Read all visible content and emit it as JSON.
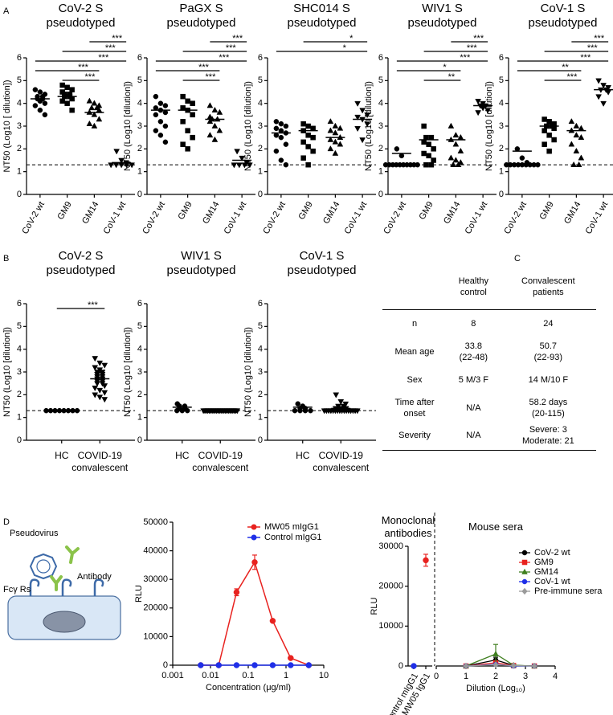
{
  "panel_labels": [
    "A",
    "B",
    "C",
    "D"
  ],
  "chart_data": [
    {
      "type": "dot",
      "title": "CoV-2 S pseudotyped",
      "ylabel": "NT50 (Log10 [ dilution])",
      "categories": [
        "CoV-2 wt",
        "GM9",
        "GM14",
        "CoV-1 wt"
      ],
      "markers": [
        "circle",
        "square",
        "triangle-up",
        "triangle-down"
      ],
      "color": "#000000",
      "values": [
        [
          4.6,
          4.5,
          4.4,
          4.3,
          4.3,
          4.2,
          4.2,
          4.1,
          4.0,
          3.9,
          3.7,
          3.5
        ],
        [
          4.8,
          4.7,
          4.6,
          4.5,
          4.4,
          4.4,
          4.3,
          4.3,
          4.2,
          4.1,
          4.0,
          3.7
        ],
        [
          4.1,
          4.0,
          3.9,
          3.8,
          3.8,
          3.7,
          3.6,
          3.5,
          3.3,
          3.1,
          3.0
        ],
        [
          1.9,
          1.5,
          1.4,
          1.3,
          1.3,
          1.3,
          1.3,
          1.3
        ]
      ],
      "means": [
        4.2,
        4.3,
        3.6,
        1.4
      ],
      "reference_line": 1.3,
      "ylim": [
        0,
        6
      ],
      "yticks": [
        0,
        1,
        2,
        3,
        4,
        5,
        6
      ],
      "significance": [
        {
          "from": 2,
          "to": 3,
          "label": "***"
        },
        {
          "from": 1,
          "to": 3,
          "label": "***"
        },
        {
          "from": 0,
          "to": 3,
          "label": "***"
        },
        {
          "from": 0,
          "to": 2,
          "label": "***"
        },
        {
          "from": 1,
          "to": 2,
          "label": "***"
        }
      ]
    },
    {
      "type": "dot",
      "title": "PaGX S pseudotyped",
      "ylabel": "NT50 (Log10 [dilution])",
      "categories": [
        "CoV-2 wt",
        "GM9",
        "GM14",
        "CoV-1 wt"
      ],
      "markers": [
        "circle",
        "square",
        "triangle-up",
        "triangle-down"
      ],
      "color": "#000000",
      "values": [
        [
          4.3,
          4.0,
          3.9,
          3.8,
          3.7,
          3.6,
          3.5,
          3.2,
          3.0,
          2.8,
          2.6,
          2.3
        ],
        [
          4.3,
          4.1,
          4.0,
          3.8,
          3.7,
          3.5,
          3.2,
          2.8,
          2.5,
          2.2,
          2.0
        ],
        [
          3.9,
          3.7,
          3.6,
          3.4,
          3.3,
          3.3,
          3.2,
          3.0,
          2.8,
          2.6,
          2.4
        ],
        [
          1.9,
          1.6,
          1.4,
          1.3,
          1.3,
          1.3,
          1.3
        ]
      ],
      "means": [
        3.7,
        3.7,
        3.3,
        1.5
      ],
      "reference_line": 1.3,
      "ylim": [
        0,
        6
      ],
      "yticks": [
        0,
        1,
        2,
        3,
        4,
        5,
        6
      ],
      "significance": [
        {
          "from": 2,
          "to": 3,
          "label": "***"
        },
        {
          "from": 1,
          "to": 3,
          "label": "***"
        },
        {
          "from": 0,
          "to": 3,
          "label": "***"
        },
        {
          "from": 0,
          "to": 2,
          "label": "***"
        },
        {
          "from": 1,
          "to": 2,
          "label": "***"
        }
      ]
    },
    {
      "type": "dot",
      "title": "SHC014 S pseudotyped",
      "ylabel": "NT50 (Log10 [dilution])",
      "categories": [
        "CoV-2 wt",
        "GM9",
        "GM14",
        "CoV-1 wt"
      ],
      "markers": [
        "circle",
        "square",
        "triangle-up",
        "triangle-down"
      ],
      "color": "#000000",
      "values": [
        [
          3.2,
          3.1,
          3.0,
          2.9,
          2.8,
          2.7,
          2.6,
          2.5,
          2.2,
          1.9,
          1.5,
          1.3
        ],
        [
          3.1,
          3.0,
          2.9,
          2.8,
          2.6,
          2.5,
          2.3,
          2.1,
          1.9,
          1.6,
          1.3
        ],
        [
          3.2,
          3.0,
          2.9,
          2.8,
          2.7,
          2.5,
          2.4,
          2.3,
          2.2,
          2.0,
          1.8
        ],
        [
          4.0,
          3.7,
          3.5,
          3.4,
          3.3,
          3.1,
          2.9,
          2.4
        ]
      ],
      "means": [
        2.7,
        2.8,
        2.5,
        3.3
      ],
      "reference_line": 1.3,
      "ylim": [
        0,
        6
      ],
      "yticks": [
        0,
        1,
        2,
        3,
        4,
        5,
        6
      ],
      "significance": [
        {
          "from": 1,
          "to": 3,
          "label": "*"
        },
        {
          "from": 0,
          "to": 3,
          "label": "*"
        }
      ]
    },
    {
      "type": "dot",
      "title": "WIV1 S pseudotyped",
      "ylabel": "NT50 (Log10 [dilution])",
      "categories": [
        "CoV-2 wt",
        "GM9",
        "GM14",
        "CoV-1 wt"
      ],
      "markers": [
        "circle",
        "square",
        "triangle-up",
        "triangle-down"
      ],
      "color": "#000000",
      "values": [
        [
          2.0,
          1.7,
          1.3,
          1.3,
          1.3,
          1.3,
          1.3,
          1.3,
          1.3,
          1.3,
          1.3,
          1.3
        ],
        [
          3.0,
          2.5,
          2.5,
          2.3,
          2.2,
          2.0,
          1.8,
          1.7,
          1.5,
          1.3,
          1.3
        ],
        [
          3.0,
          2.6,
          2.5,
          2.4,
          2.2,
          1.9,
          1.6,
          1.5,
          1.4,
          1.3,
          1.3
        ],
        [
          4.1,
          4.0,
          3.9,
          3.9,
          3.8,
          3.7,
          3.6
        ]
      ],
      "means": [
        1.8,
        2.4,
        2.4,
        3.9
      ],
      "reference_line": 1.3,
      "ylim": [
        0,
        6
      ],
      "yticks": [
        0,
        1,
        2,
        3,
        4,
        5,
        6
      ],
      "significance": [
        {
          "from": 2,
          "to": 3,
          "label": "***"
        },
        {
          "from": 1,
          "to": 3,
          "label": "***"
        },
        {
          "from": 0,
          "to": 3,
          "label": "***"
        },
        {
          "from": 0,
          "to": 2,
          "label": "*"
        },
        {
          "from": 1,
          "to": 2,
          "label": "**"
        }
      ]
    },
    {
      "type": "dot",
      "title": "CoV-1 S pseudotyped",
      "ylabel": "NT50 (Log10 [dilution])",
      "categories": [
        "CoV-2 wt",
        "GM9",
        "GM14",
        "CoV-1 wt"
      ],
      "markers": [
        "circle",
        "square",
        "triangle-up",
        "triangle-down"
      ],
      "color": "#000000",
      "values": [
        [
          2.0,
          1.6,
          1.4,
          1.3,
          1.3,
          1.3,
          1.3,
          1.3,
          1.3,
          1.3,
          1.3,
          1.3
        ],
        [
          3.3,
          3.2,
          3.1,
          3.0,
          3.0,
          2.9,
          2.8,
          2.6,
          2.4,
          2.2,
          1.9
        ],
        [
          3.2,
          3.0,
          2.9,
          2.8,
          2.6,
          2.5,
          2.2,
          1.9,
          1.6,
          1.3,
          1.3
        ],
        [
          5.0,
          4.8,
          4.7,
          4.6,
          4.6,
          4.5,
          4.3,
          4.0
        ]
      ],
      "means": [
        1.9,
        3.0,
        2.8,
        4.6
      ],
      "reference_line": 1.3,
      "ylim": [
        0,
        6
      ],
      "yticks": [
        0,
        1,
        2,
        3,
        4,
        5,
        6
      ],
      "significance": [
        {
          "from": 2,
          "to": 3,
          "label": "***"
        },
        {
          "from": 1,
          "to": 3,
          "label": "***"
        },
        {
          "from": 0,
          "to": 3,
          "label": "***"
        },
        {
          "from": 0,
          "to": 2,
          "label": "**"
        },
        {
          "from": 1,
          "to": 2,
          "label": "***"
        }
      ]
    },
    {
      "type": "dot",
      "title": "CoV-2 S pseudotyped",
      "ylabel": "NT50 (Log10 [dilution])",
      "categories": [
        "HC",
        "COVID-19 convalescent"
      ],
      "markers": [
        "circle",
        "triangle-down"
      ],
      "color": "#000000",
      "values": [
        [
          1.3,
          1.3,
          1.3,
          1.3,
          1.3,
          1.3,
          1.3,
          1.3
        ],
        [
          3.6,
          3.4,
          3.3,
          3.2,
          3.1,
          3.0,
          3.0,
          2.9,
          2.9,
          2.8,
          2.8,
          2.7,
          2.7,
          2.6,
          2.6,
          2.5,
          2.5,
          2.4,
          2.3,
          2.2,
          2.1,
          2.0,
          1.9,
          1.8
        ]
      ],
      "means": [
        1.3,
        2.7
      ],
      "reference_line": 1.3,
      "ylim": [
        0,
        6
      ],
      "yticks": [
        0,
        1,
        2,
        3,
        4,
        5,
        6
      ],
      "significance": [
        {
          "from": 0,
          "to": 1,
          "label": "***"
        }
      ]
    },
    {
      "type": "dot",
      "title": "WIV1 S pseudotyped",
      "ylabel": "NT50 (Log10 [dilution])",
      "categories": [
        "HC",
        "COVID-19 convalescent"
      ],
      "markers": [
        "circle",
        "triangle-down"
      ],
      "color": "#000000",
      "values": [
        [
          1.6,
          1.5,
          1.5,
          1.4,
          1.4,
          1.3,
          1.3,
          1.3
        ],
        [
          1.3,
          1.3,
          1.3,
          1.3,
          1.3,
          1.3,
          1.3,
          1.3,
          1.3,
          1.3,
          1.3,
          1.3,
          1.3,
          1.3,
          1.3,
          1.3,
          1.3,
          1.3,
          1.3,
          1.3,
          1.3,
          1.3,
          1.3,
          1.3
        ]
      ],
      "means": [
        1.45,
        1.3
      ],
      "reference_line": 1.3,
      "ylim": [
        0,
        6
      ],
      "yticks": [
        0,
        1,
        2,
        3,
        4,
        5,
        6
      ]
    },
    {
      "type": "dot",
      "title": "CoV-1 S pseudotyped",
      "ylabel": "NT50 (Log10 [dilution])",
      "categories": [
        "HC",
        "COVID-19 convalescent"
      ],
      "markers": [
        "circle",
        "triangle-down"
      ],
      "color": "#000000",
      "values": [
        [
          1.6,
          1.5,
          1.4,
          1.4,
          1.3,
          1.3,
          1.3,
          1.3
        ],
        [
          2.0,
          1.7,
          1.6,
          1.5,
          1.5,
          1.4,
          1.4,
          1.4,
          1.3,
          1.3,
          1.3,
          1.3,
          1.3,
          1.3,
          1.3,
          1.3,
          1.3,
          1.3,
          1.3,
          1.3,
          1.3,
          1.3,
          1.3,
          1.3
        ]
      ],
      "means": [
        1.45,
        1.4
      ],
      "reference_line": 1.3,
      "ylim": [
        0,
        6
      ],
      "yticks": [
        0,
        1,
        2,
        3,
        4,
        5,
        6
      ]
    },
    {
      "type": "line",
      "xlabel": "Concentration (μg/ml)",
      "ylabel": "RLU",
      "log_x": true,
      "xlim": [
        0.001,
        10
      ],
      "xticks": [
        0.001,
        0.01,
        0.1,
        1,
        10
      ],
      "ylim": [
        0,
        50000
      ],
      "yticks": [
        0,
        10000,
        20000,
        30000,
        40000,
        50000
      ],
      "x": [
        0.0055,
        0.0165,
        0.049,
        0.148,
        0.444,
        1.33,
        4
      ],
      "series": [
        {
          "name": "MW05 mIgG1",
          "color": "#e8221f",
          "values": [
            0,
            0,
            25500,
            36000,
            15500,
            2500,
            0
          ],
          "errors": [
            0,
            0,
            1200,
            2500,
            0,
            300,
            0
          ]
        },
        {
          "name": "Control mIgG1",
          "color": "#1f2fe8",
          "values": [
            0,
            0,
            0,
            0,
            0,
            0,
            0
          ]
        }
      ],
      "legend": "upper right"
    },
    {
      "type": "combo",
      "ylabel": "RLU",
      "group_labels": [
        "Monoclonal antibodies",
        "Mouse sera"
      ],
      "categories": [
        "Control mIgG1",
        "MW05 IgG1"
      ],
      "category_values": [
        0,
        26500
      ],
      "category_errors": [
        0,
        1500
      ],
      "category_colors": [
        "#1f2fe8",
        "#e8221f"
      ],
      "xlabel": "Dilution (Log₁₀)",
      "xlim": [
        0,
        4
      ],
      "xticks": [
        0,
        1,
        2,
        3,
        4
      ],
      "ylim": [
        0,
        30000
      ],
      "yticks": [
        0,
        10000,
        20000,
        30000
      ],
      "x": [
        1,
        2,
        2.6,
        3.3
      ],
      "series": [
        {
          "name": "CoV-2 wt",
          "color": "#000000",
          "marker": "circle",
          "values": [
            0,
            1500,
            150,
            0
          ],
          "errors": [
            0,
            700,
            0,
            0
          ]
        },
        {
          "name": "GM9",
          "color": "#e8221f",
          "marker": "square",
          "values": [
            0,
            800,
            100,
            0
          ],
          "errors": [
            0,
            0,
            0,
            0
          ]
        },
        {
          "name": "GM14",
          "color": "#3f7f1f",
          "marker": "triangle-up",
          "values": [
            0,
            3000,
            200,
            0
          ],
          "errors": [
            0,
            2400,
            0,
            0
          ]
        },
        {
          "name": "CoV-1 wt",
          "color": "#1f2fe8",
          "marker": "circle",
          "values": [
            0,
            400,
            0,
            0
          ],
          "errors": [
            0,
            0,
            0,
            0
          ]
        },
        {
          "name": "Pre-immune sera",
          "color": "#9a9a9a",
          "marker": "diamond",
          "values": [
            0,
            300,
            100,
            0
          ],
          "errors": [
            0,
            0,
            0,
            0
          ]
        }
      ],
      "legend": "right"
    }
  ],
  "table": {
    "columns": [
      "Healthy\ncontrol",
      "Convalescent\npatients"
    ],
    "rows": [
      [
        "n",
        "8",
        "24"
      ],
      [
        "Mean age",
        "33.8\n(22-48)",
        "50.7\n(22-93)"
      ],
      [
        "Sex",
        "5 M/3 F",
        "14 M/10 F"
      ],
      [
        "Time after\nonset",
        "N/A",
        "58.2 days\n(20-115)"
      ],
      [
        "Severity",
        "N/A",
        "Severe: 3\nModerate: 21"
      ]
    ]
  },
  "diagram": {
    "labels": [
      "Pseudovirus",
      "Antibody",
      "Fcγ Rs"
    ]
  }
}
